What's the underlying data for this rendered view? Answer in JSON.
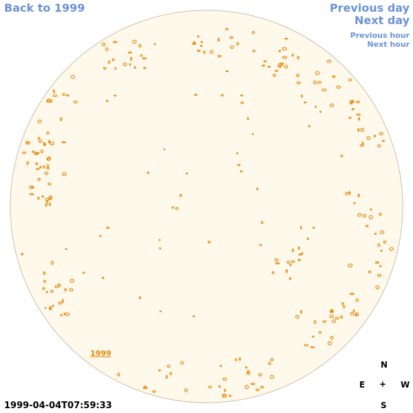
{
  "nav": {
    "back": "Back to 1999",
    "previous_day": "Previous day",
    "next_day": "Next day",
    "previous_hour": "Previous hour",
    "next_hour": "Next hour"
  },
  "disk_link": "1999",
  "timestamp": "1999-04-04T07:59:33",
  "compass": {
    "north": "N",
    "east": "E",
    "center": "+",
    "west": "W",
    "south": "S"
  },
  "colors": {
    "disk_fill": "#fff9ec",
    "disk_edge": "#c9bfa8",
    "feature": "#e8870a",
    "link": "#6b93d6"
  }
}
